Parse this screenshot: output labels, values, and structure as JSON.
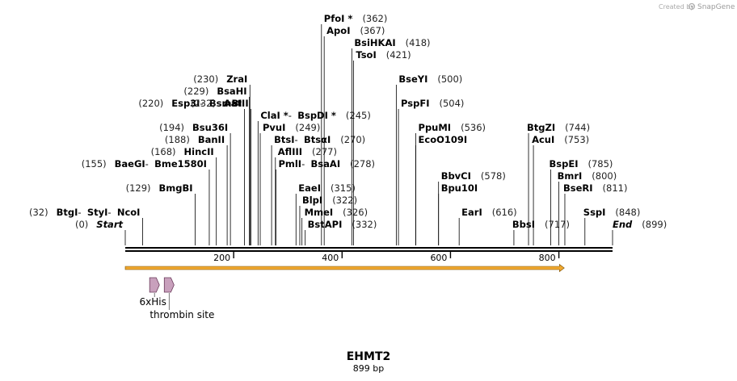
{
  "branding": {
    "created_by": "Created by",
    "app": "SnapGene"
  },
  "sequence": {
    "name": "EHMT2",
    "length_label": "899 bp",
    "length": 899
  },
  "axis": {
    "ticks": [
      200,
      400,
      600,
      800
    ]
  },
  "colors": {
    "line": "#000000",
    "orf_fill": "#f0a830",
    "orf_stroke": "#7a5000",
    "feature_fill": "#c8a0bc",
    "feature_stroke": "#6a3a5a",
    "credit": "#aaaaaa"
  },
  "orf": {
    "start": 0,
    "end": 810,
    "direction": "forward"
  },
  "features": [
    {
      "name": "6xHis",
      "start": 45,
      "end": 63,
      "label_row": 0
    },
    {
      "name": "thrombin site",
      "start": 72,
      "end": 90,
      "label_row": 1
    }
  ],
  "sites": [
    {
      "row": 0,
      "pos": 0,
      "parts": [
        {
          "name": "Start",
          "italic": true
        }
      ],
      "label": "(0)"
    },
    {
      "row": 0,
      "pos": 332,
      "parts": [
        {
          "name": "BstAPI"
        }
      ],
      "label": "(332)"
    },
    {
      "row": 0,
      "pos": 717,
      "parts": [
        {
          "name": "BbsI"
        }
      ],
      "label": "(717)"
    },
    {
      "row": 0,
      "pos": 899,
      "parts": [
        {
          "name": "End",
          "italic": true
        }
      ],
      "label": "(899)"
    },
    {
      "row": 1,
      "pos": 32,
      "parts": [
        {
          "name": "BtgI"
        },
        {
          "name": "StyI"
        },
        {
          "name": "NcoI"
        }
      ],
      "label": "(32)"
    },
    {
      "row": 1,
      "pos": 326,
      "parts": [
        {
          "name": "MmeI"
        }
      ],
      "label": "(326)"
    },
    {
      "row": 1,
      "pos": 616,
      "parts": [
        {
          "name": "EarI"
        }
      ],
      "label": "(616)"
    },
    {
      "row": 1,
      "pos": 848,
      "parts": [
        {
          "name": "SspI"
        }
      ],
      "label": "(848)"
    },
    {
      "row": 2,
      "pos": 322,
      "parts": [
        {
          "name": "BlpI"
        }
      ],
      "label": "(322)"
    },
    {
      "row": 3,
      "pos": 129,
      "parts": [
        {
          "name": "BmgBI"
        }
      ],
      "label": "(129)"
    },
    {
      "row": 3,
      "pos": 315,
      "parts": [
        {
          "name": "EaeI"
        }
      ],
      "label": "(315)"
    },
    {
      "row": 3,
      "pos": 578,
      "parts": [
        {
          "name": "Bpu10I"
        }
      ],
      "label": ""
    },
    {
      "row": 3,
      "pos": 811,
      "parts": [
        {
          "name": "BseRI"
        }
      ],
      "label": "(811)"
    },
    {
      "row": 4,
      "pos": 578,
      "parts": [
        {
          "name": "BbvCI"
        }
      ],
      "label": "(578)"
    },
    {
      "row": 4,
      "pos": 800,
      "parts": [
        {
          "name": "BmrI"
        }
      ],
      "label": "(800)"
    },
    {
      "row": 5,
      "pos": 155,
      "parts": [
        {
          "name": "BaeGI"
        },
        {
          "name": "Bme1580I"
        }
      ],
      "label": "(155)"
    },
    {
      "row": 5,
      "pos": 278,
      "parts": [
        {
          "name": "PmlI"
        },
        {
          "name": "BsaAI"
        }
      ],
      "label": "(278)"
    },
    {
      "row": 5,
      "pos": 785,
      "parts": [
        {
          "name": "BspEI"
        }
      ],
      "label": "(785)"
    },
    {
      "row": 6,
      "pos": 168,
      "parts": [
        {
          "name": "HincII"
        }
      ],
      "label": "(168)"
    },
    {
      "row": 6,
      "pos": 277,
      "parts": [
        {
          "name": "AflIII"
        }
      ],
      "label": "(277)"
    },
    {
      "row": 7,
      "pos": 188,
      "parts": [
        {
          "name": "BanII"
        }
      ],
      "label": "(188)"
    },
    {
      "row": 7,
      "pos": 270,
      "parts": [
        {
          "name": "BtsI"
        },
        {
          "name": "BtsαI"
        }
      ],
      "label": "(270)"
    },
    {
      "row": 7,
      "pos": 536,
      "parts": [
        {
          "name": "EcoO109I"
        }
      ],
      "label": ""
    },
    {
      "row": 7,
      "pos": 753,
      "parts": [
        {
          "name": "AcuI"
        }
      ],
      "label": "(753)"
    },
    {
      "row": 8,
      "pos": 194,
      "parts": [
        {
          "name": "Bsu36I"
        }
      ],
      "label": "(194)"
    },
    {
      "row": 8,
      "pos": 249,
      "parts": [
        {
          "name": "PvuI"
        }
      ],
      "label": "(249)"
    },
    {
      "row": 8,
      "pos": 536,
      "parts": [
        {
          "name": "PpuMI"
        }
      ],
      "label": "(536)"
    },
    {
      "row": 8,
      "pos": 744,
      "parts": [
        {
          "name": "BtgZI"
        }
      ],
      "label": "(744)"
    },
    {
      "row": 9,
      "pos": 245,
      "parts": [
        {
          "name": "ClaI *"
        },
        {
          "name": "BspDI *"
        }
      ],
      "label": "(245)"
    },
    {
      "row": 10,
      "pos": 220,
      "parts": [
        {
          "name": "Esp3I"
        },
        {
          "name": "BsmBI"
        }
      ],
      "label": "(220)"
    },
    {
      "row": 10,
      "pos": 232,
      "parts": [
        {
          "name": "AatII"
        }
      ],
      "label": "(232)"
    },
    {
      "row": 10,
      "pos": 504,
      "parts": [
        {
          "name": "PspFI"
        }
      ],
      "label": "(504)"
    },
    {
      "row": 11,
      "pos": 229,
      "parts": [
        {
          "name": "BsaHI"
        }
      ],
      "label": "(229)"
    },
    {
      "row": 12,
      "pos": 230,
      "parts": [
        {
          "name": "ZraI"
        }
      ],
      "label": "(230)"
    },
    {
      "row": 12,
      "pos": 500,
      "parts": [
        {
          "name": "BseYI"
        }
      ],
      "label": "(500)"
    },
    {
      "row": 14,
      "pos": 421,
      "parts": [
        {
          "name": "TsoI"
        }
      ],
      "label": "(421)"
    },
    {
      "row": 15,
      "pos": 418,
      "parts": [
        {
          "name": "BsiHKAI"
        }
      ],
      "label": "(418)"
    },
    {
      "row": 16,
      "pos": 367,
      "parts": [
        {
          "name": "ApoI"
        }
      ],
      "label": "(367)"
    },
    {
      "row": 17,
      "pos": 362,
      "parts": [
        {
          "name": "PfoI *"
        }
      ],
      "label": "(362)"
    }
  ]
}
